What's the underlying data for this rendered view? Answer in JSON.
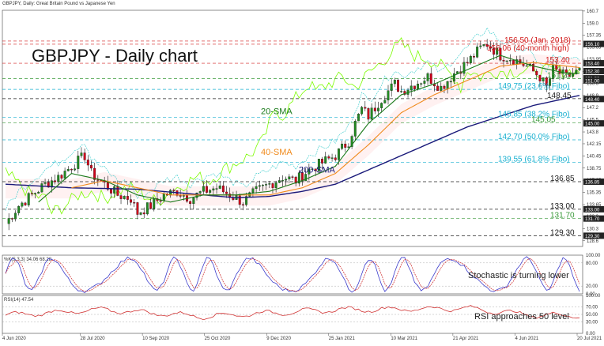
{
  "header": {
    "symbol_line": "GBPJPY, Daily:  Great Britain Pound vs Japanese Yen",
    "title": "GBPJPY - Daily chart"
  },
  "colors": {
    "up": "#228b22",
    "down": "#d0021b",
    "sma20": "#1a7a1a",
    "sma40": "#f08a1c",
    "sma200": "#1a1a7a",
    "ichimoku_green": "#7cfc00",
    "ichimoku_cyan": "#2fc9c9",
    "level_red": "#d32020",
    "level_green": "#3a9a3a",
    "level_cyan": "#18b0d0",
    "level_black": "#222222",
    "stoch_main": "#3c3ccc",
    "stoch_signal": "#cc2222",
    "rsi": "#d03030"
  },
  "chart_data": [
    {
      "type": "candlestick",
      "title": "GBPJPY - Daily chart",
      "y_axis_ticks": [
        160.7,
        159.0,
        157.35,
        155.65,
        153.95,
        152.25,
        150.6,
        148.9,
        147.2,
        145.5,
        143.8,
        142.15,
        140.45,
        138.75,
        137.05,
        135.35,
        133.65,
        132.0,
        130.3,
        128.6
      ],
      "y_axis_badges": [
        156.1,
        153.4,
        152.3,
        151.3,
        151.0,
        148.4,
        145.0,
        136.85,
        133.0,
        131.7,
        129.3
      ],
      "ylim": [
        127.8,
        160.8
      ],
      "x_axis_labels": [
        "4 Jun 2020",
        "28 Jul 2020",
        "10 Sep 2020",
        "25 Oct 2020",
        "9 Dec 2020",
        "25 Jan 2021",
        "10 Mar 2021",
        "21 Apr 2021",
        "4 Jun 2021",
        "20 Jul 2021"
      ],
      "series_labels": {
        "sma20": "20-SMA",
        "sma40": "40-SMA",
        "sma200": "200-SMA"
      },
      "levels": [
        {
          "value": 156.5,
          "label": "156.50 (Jan. 2018)",
          "group": "red"
        },
        {
          "value": 156.06,
          "label": "156.06 (40-month high)",
          "group": "red"
        },
        {
          "value": 153.4,
          "label": "153.40",
          "group": "red"
        },
        {
          "value": 151.25,
          "label": "151.25",
          "group": "green"
        },
        {
          "value": 149.75,
          "label": "149.75 (23.6% Fibo)",
          "group": "cyan"
        },
        {
          "value": 148.45,
          "label": "148.45",
          "group": "black"
        },
        {
          "value": 145.85,
          "label": "145.85 (38.2% Fibo)",
          "group": "cyan"
        },
        {
          "value": 145.05,
          "label": "145.05",
          "group": "green"
        },
        {
          "value": 142.7,
          "label": "142.70 (50.0% Fibo)",
          "group": "cyan"
        },
        {
          "value": 139.55,
          "label": "139.55 (61.8% Fibo)",
          "group": "cyan"
        },
        {
          "value": 136.85,
          "label": "136.85",
          "group": "black"
        },
        {
          "value": 133.0,
          "label": "133.00",
          "group": "black"
        },
        {
          "value": 131.7,
          "label": "131.70",
          "group": "green"
        },
        {
          "value": 129.3,
          "label": "129.30",
          "group": "black"
        }
      ],
      "price_path": [
        [
          0,
          131.0
        ],
        [
          4,
          133.5
        ],
        [
          8,
          135.0
        ],
        [
          12,
          136.5
        ],
        [
          16,
          137.5
        ],
        [
          20,
          139.0
        ],
        [
          24,
          140.5
        ],
        [
          26,
          138.0
        ],
        [
          30,
          136.5
        ],
        [
          34,
          135.0
        ],
        [
          38,
          134.5
        ],
        [
          40,
          132.5
        ],
        [
          44,
          133.5
        ],
        [
          48,
          135.0
        ],
        [
          52,
          135.5
        ],
        [
          56,
          134.5
        ],
        [
          60,
          135.5
        ],
        [
          64,
          136.0
        ],
        [
          68,
          135.0
        ],
        [
          72,
          134.0
        ],
        [
          76,
          135.5
        ],
        [
          80,
          136.5
        ],
        [
          84,
          137.5
        ],
        [
          88,
          137.0
        ],
        [
          92,
          138.5
        ],
        [
          96,
          139.5
        ],
        [
          100,
          140.5
        ],
        [
          104,
          142.5
        ],
        [
          106,
          145.0
        ],
        [
          108,
          147.0
        ],
        [
          110,
          146.0
        ],
        [
          114,
          148.5
        ],
        [
          118,
          150.5
        ],
        [
          120,
          149.5
        ],
        [
          124,
          150.5
        ],
        [
          128,
          151.5
        ],
        [
          132,
          150.0
        ],
        [
          136,
          152.0
        ],
        [
          140,
          153.5
        ],
        [
          144,
          155.5
        ],
        [
          146,
          156.1
        ],
        [
          150,
          154.5
        ],
        [
          154,
          154.0
        ],
        [
          158,
          153.0
        ],
        [
          162,
          151.5
        ],
        [
          164,
          150.0
        ],
        [
          166,
          152.5
        ],
        [
          170,
          151.5
        ],
        [
          174,
          152.3
        ]
      ],
      "sma20_path": [
        [
          10,
          134.0
        ],
        [
          20,
          138.0
        ],
        [
          30,
          137.0
        ],
        [
          40,
          135.0
        ],
        [
          50,
          134.0
        ],
        [
          60,
          135.0
        ],
        [
          70,
          135.0
        ],
        [
          80,
          135.5
        ],
        [
          90,
          137.0
        ],
        [
          100,
          139.0
        ],
        [
          110,
          145.0
        ],
        [
          120,
          149.0
        ],
        [
          130,
          150.5
        ],
        [
          140,
          152.5
        ],
        [
          150,
          154.5
        ],
        [
          160,
          153.0
        ],
        [
          170,
          152.0
        ],
        [
          174,
          152.0
        ]
      ],
      "sma40_path": [
        [
          20,
          136.0
        ],
        [
          30,
          137.0
        ],
        [
          40,
          136.0
        ],
        [
          50,
          135.0
        ],
        [
          60,
          135.0
        ],
        [
          70,
          135.0
        ],
        [
          80,
          135.0
        ],
        [
          90,
          136.0
        ],
        [
          100,
          138.0
        ],
        [
          110,
          142.0
        ],
        [
          120,
          146.5
        ],
        [
          130,
          149.0
        ],
        [
          140,
          151.0
        ],
        [
          150,
          153.0
        ],
        [
          160,
          153.5
        ],
        [
          170,
          153.0
        ],
        [
          174,
          152.8
        ]
      ],
      "sma200_path": [
        [
          0,
          136.5
        ],
        [
          20,
          136.0
        ],
        [
          40,
          135.8
        ],
        [
          60,
          135.0
        ],
        [
          70,
          134.6
        ],
        [
          80,
          134.8
        ],
        [
          90,
          135.5
        ],
        [
          100,
          136.5
        ],
        [
          110,
          138.5
        ],
        [
          120,
          140.5
        ],
        [
          130,
          142.5
        ],
        [
          140,
          144.5
        ],
        [
          150,
          146.0
        ],
        [
          160,
          147.5
        ],
        [
          174,
          148.9
        ]
      ],
      "n_bars": 175
    },
    {
      "type": "line",
      "header": "%K(5,3,3) 34.06 68.28",
      "y_axis_ticks": [
        100.0,
        80.0,
        20.0,
        0.0
      ],
      "ylim": [
        0,
        100
      ],
      "annotation": "Stochastic is turning lower",
      "last_values": {
        "k": 34.06,
        "d": 68.28
      }
    },
    {
      "type": "line",
      "header": "RSI(14) 47.54",
      "y_axis_ticks": [
        100.0,
        70.0,
        50.0,
        30.0,
        0.0
      ],
      "ylim": [
        0,
        100
      ],
      "annotation": "RSI approaches 50 level",
      "last_value": 47.54
    }
  ]
}
